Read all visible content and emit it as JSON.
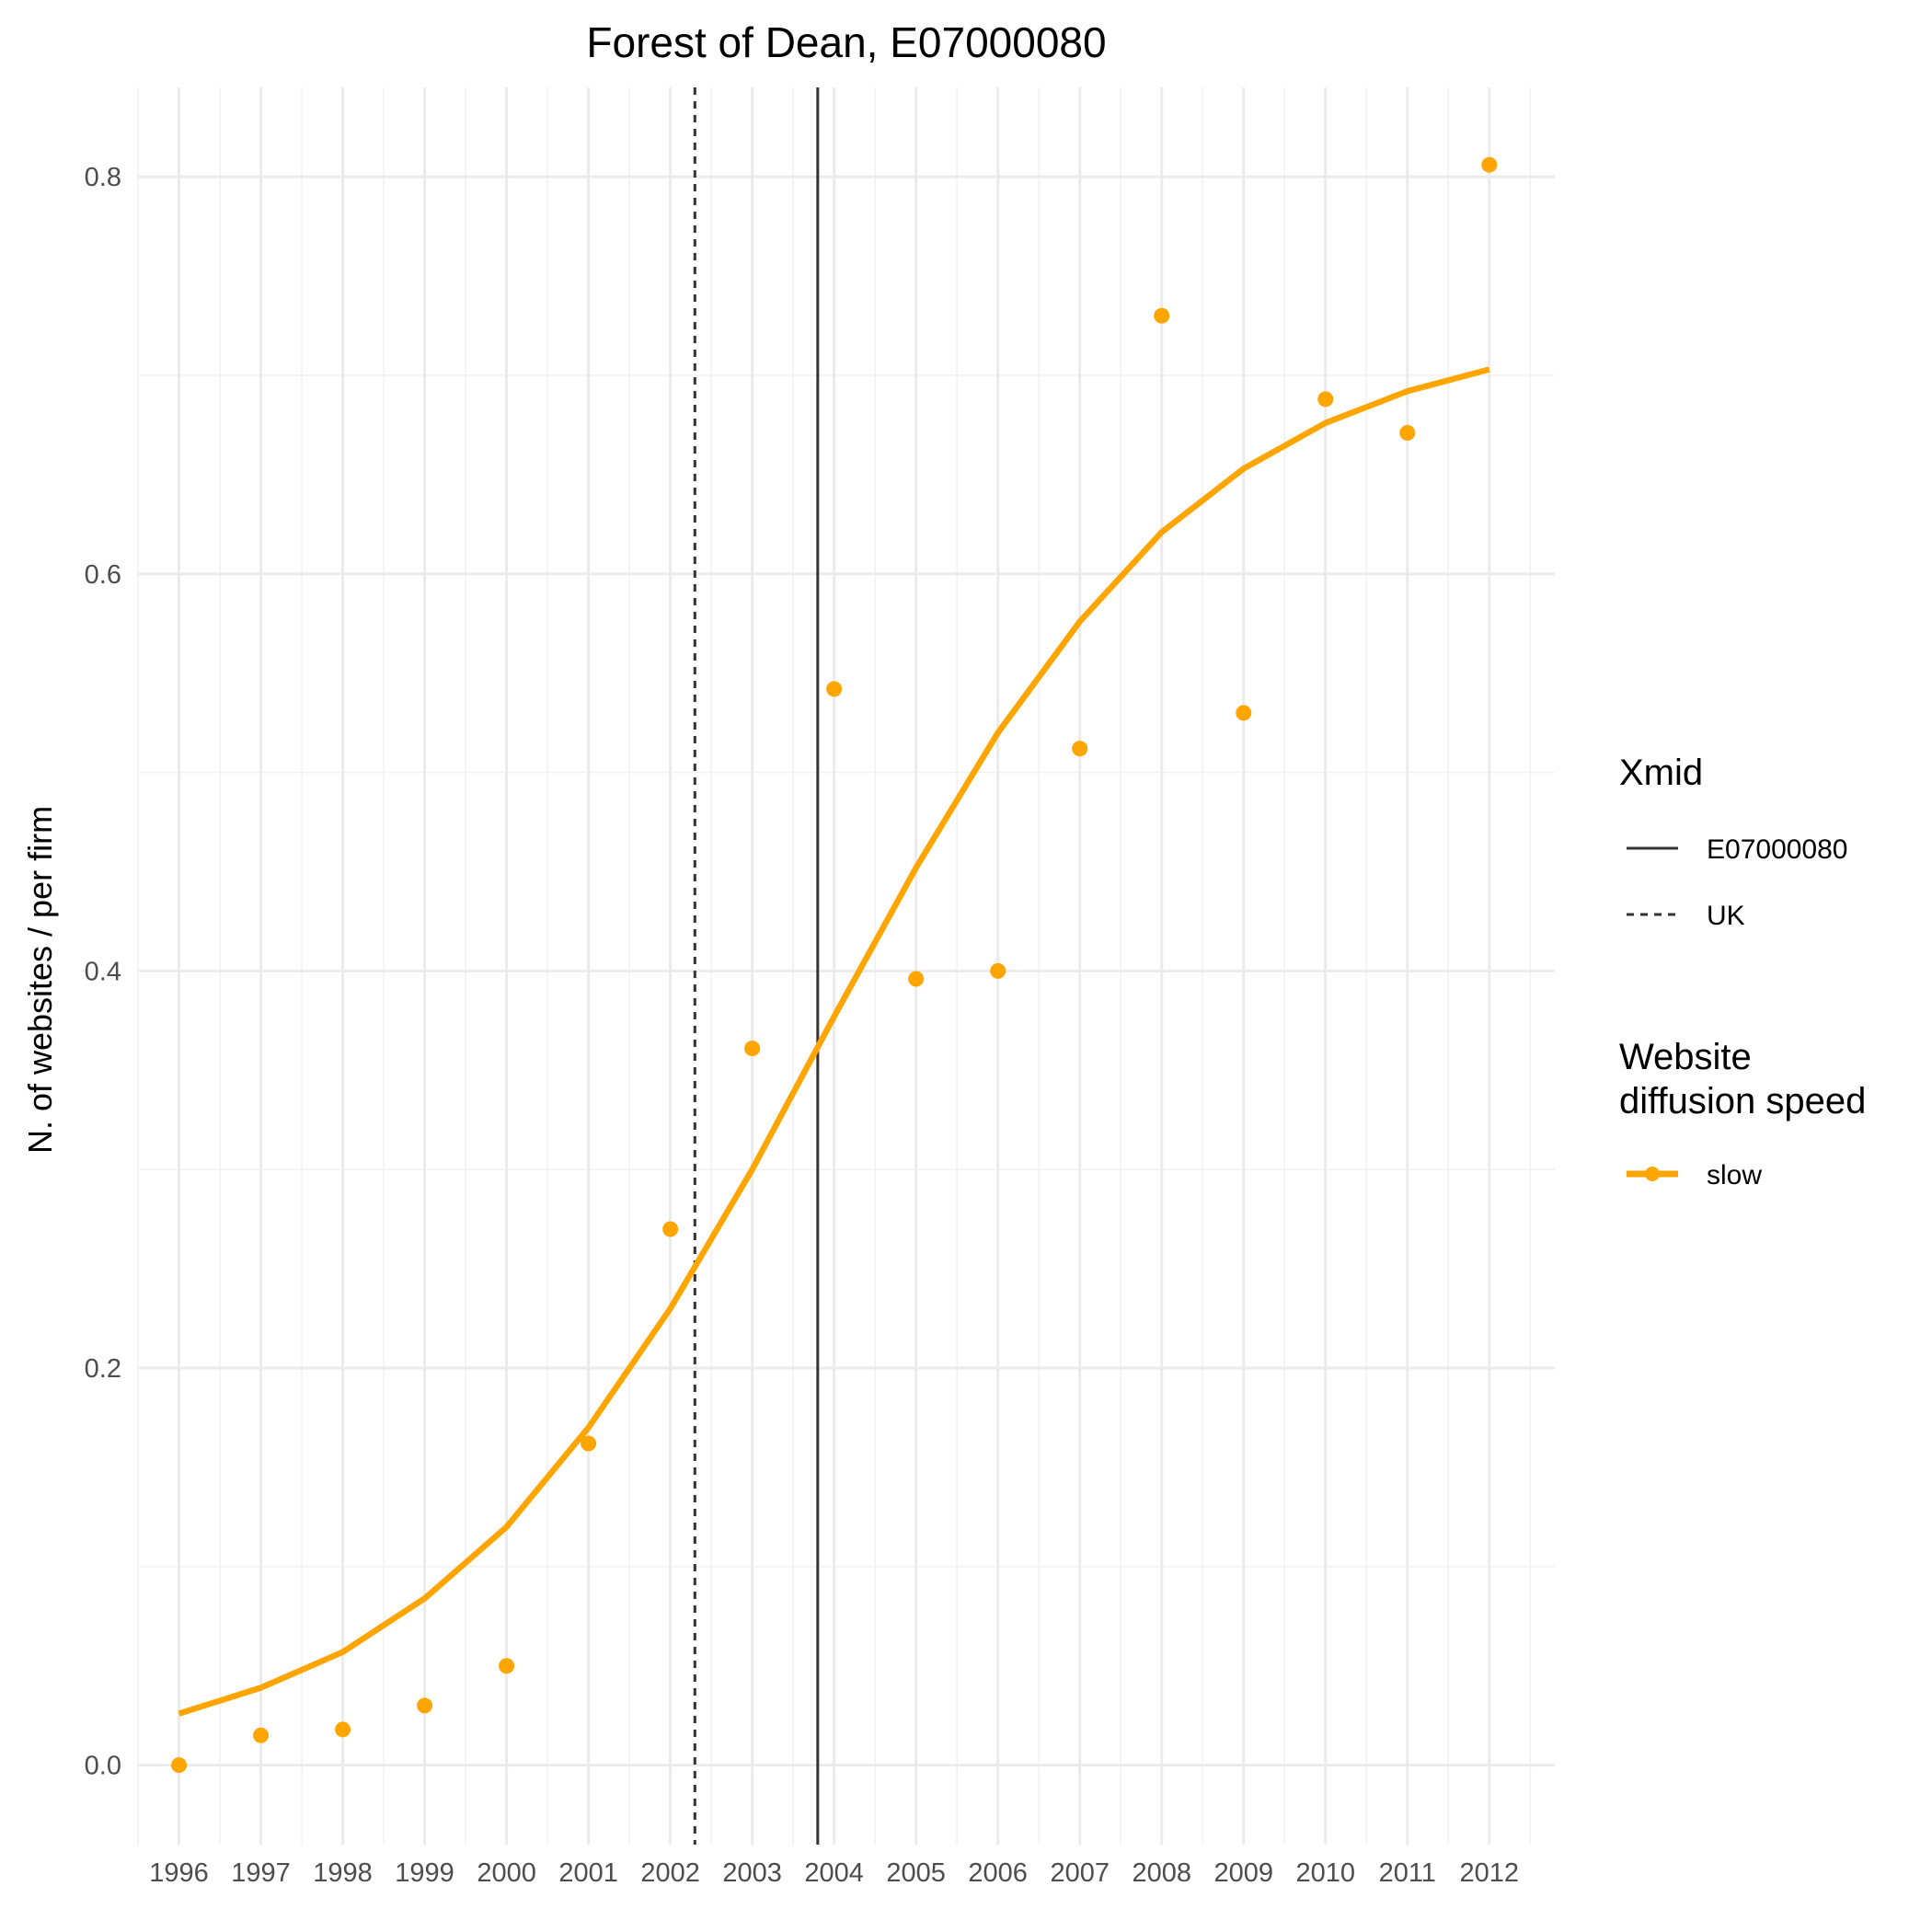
{
  "chart_data": {
    "type": "line",
    "title": "Forest of Dean, E07000080",
    "xlabel": "",
    "ylabel": "N. of websites / per firm",
    "x": [
      1996,
      1997,
      1998,
      1999,
      2000,
      2001,
      2002,
      2003,
      2004,
      2005,
      2006,
      2007,
      2008,
      2009,
      2010,
      2011,
      2012
    ],
    "x_tick_labels": [
      "1996",
      "1997",
      "1998",
      "1999",
      "2000",
      "2001",
      "2002",
      "2003",
      "2004",
      "2005",
      "2006",
      "2007",
      "2008",
      "2009",
      "2010",
      "2011",
      "2012"
    ],
    "y_ticks": [
      0.0,
      0.2,
      0.4,
      0.6,
      0.8
    ],
    "y_tick_labels": [
      "0.0",
      "0.2",
      "0.4",
      "0.6",
      "0.8"
    ],
    "xlim": [
      1995.5,
      2012.8
    ],
    "ylim": [
      -0.04,
      0.845
    ],
    "grid": true,
    "series": [
      {
        "name": "slow",
        "color": "#FFA500",
        "points": [
          0.0,
          0.015,
          0.018,
          0.03,
          0.05,
          0.162,
          0.27,
          0.361,
          0.542,
          0.396,
          0.4,
          0.512,
          0.73,
          0.53,
          0.688,
          0.671,
          0.806
        ],
        "fitted": [
          0.026,
          0.039,
          0.057,
          0.084,
          0.12,
          0.17,
          0.23,
          0.3,
          0.377,
          0.452,
          0.52,
          0.576,
          0.621,
          0.653,
          0.676,
          0.692,
          0.703
        ]
      }
    ],
    "vlines": [
      {
        "name": "E07000080",
        "x": 2003.8,
        "linetype": "solid",
        "color": "#333333"
      },
      {
        "name": "UK",
        "x": 2002.3,
        "linetype": "dashed",
        "color": "#333333"
      }
    ],
    "legend": {
      "placement": "right",
      "xmid_title": "Xmid",
      "xmid_items": [
        "E07000080",
        "UK"
      ],
      "speed_title_lines": [
        "Website",
        "diffusion speed"
      ],
      "speed_items": [
        "slow"
      ]
    }
  }
}
